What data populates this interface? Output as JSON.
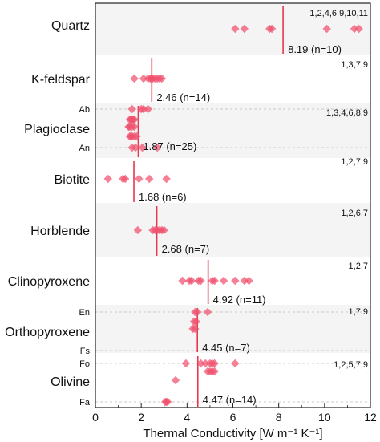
{
  "chart_data": {
    "type": "scatter",
    "title": "",
    "xlabel": "Thermal Conductivity [W m⁻¹ K⁻¹]",
    "ylabel": "",
    "xlim": [
      0,
      12
    ],
    "xticks": [
      0,
      2,
      4,
      6,
      8,
      10,
      12
    ],
    "grid": false,
    "legend": "none",
    "colors": {
      "marker": "#f0506e",
      "mean_line": "#e8364f",
      "band": "#f4f4f4",
      "divider": "#bbbbbb"
    },
    "minerals": [
      {
        "name": "Quartz",
        "refs": "1,2,4,6,9,10,11",
        "mean": 8.19,
        "mean_label": "8.19 (n=10)",
        "subgroups": [
          {
            "label": "",
            "values": [
              6.1,
              6.5,
              7.6,
              7.7,
              10.1,
              11.3,
              11.5
            ]
          }
        ]
      },
      {
        "name": "K-feldspar",
        "refs": "1,3,7,9",
        "mean": 2.46,
        "mean_label": "2.46 (n=14)",
        "subgroups": [
          {
            "label": "",
            "values": [
              1.7,
              2.1,
              2.3,
              2.4,
              2.45,
              2.5,
              2.6,
              2.7,
              2.8,
              2.9
            ]
          }
        ]
      },
      {
        "name": "Plagioclase",
        "refs": "1,3,4,6,8,9",
        "mean": 1.87,
        "mean_label": "1.87 (n=25)",
        "subgroups": [
          {
            "label": "Ab",
            "values": [
              1.6,
              2.0,
              2.1,
              2.3
            ]
          },
          {
            "label": "",
            "values": [
              1.5,
              1.55,
              1.6,
              1.65,
              1.7
            ]
          },
          {
            "label": "",
            "values": [
              1.45,
              1.5,
              1.6,
              1.7
            ]
          },
          {
            "label": "",
            "values": [
              1.5,
              1.55,
              1.6,
              1.7,
              1.8
            ]
          },
          {
            "label": "An",
            "values": [
              1.6,
              1.75,
              2.05,
              2.7
            ]
          }
        ]
      },
      {
        "name": "Biotite",
        "refs": "1,2,7,9",
        "mean": 1.68,
        "mean_label": "1.68 (n=6)",
        "subgroups": [
          {
            "label": "",
            "values": [
              0.55,
              1.2,
              1.3,
              1.9,
              2.35,
              3.1
            ]
          }
        ]
      },
      {
        "name": "Horblende",
        "refs": "1,2,6,7",
        "mean": 2.68,
        "mean_label": "2.68 (n=7)",
        "subgroups": [
          {
            "label": "",
            "values": [
              1.85,
              2.5,
              2.6,
              2.7,
              2.8,
              2.9,
              3.0
            ]
          }
        ]
      },
      {
        "name": "Clinopyroxene",
        "refs": "1,2,7",
        "mean": 4.92,
        "mean_label": "4.92 (n=11)",
        "subgroups": [
          {
            "label": "",
            "values": [
              3.8,
              4.1,
              4.2,
              4.5,
              4.6,
              5.1,
              5.2,
              5.6,
              6.1,
              6.5,
              6.7
            ]
          }
        ]
      },
      {
        "name": "Orthopyroxene",
        "refs": "1,7,9",
        "mean": 4.45,
        "mean_label": "4.45 (n=7)",
        "subgroups": [
          {
            "label": "En",
            "values": [
              4.35,
              4.45,
              4.9
            ]
          },
          {
            "label": "",
            "values": [
              4.3,
              4.4
            ]
          },
          {
            "label": "",
            "values": [
              4.25,
              4.35
            ]
          },
          {
            "label": "Fs",
            "values": []
          }
        ]
      },
      {
        "name": "Olivine",
        "refs": "1,2,5,7,9",
        "mean": 4.47,
        "mean_label": "4.47 (n=14)",
        "subgroups": [
          {
            "label": "Fo",
            "values": [
              3.95,
              4.6,
              4.8,
              5.0,
              5.1,
              5.2,
              6.1
            ]
          },
          {
            "label": "",
            "values": [
              4.9,
              5.0,
              5.1,
              5.2
            ]
          },
          {
            "label": "",
            "values": [
              3.5
            ]
          },
          {
            "label": "Fa",
            "values": [
              3.05,
              3.1,
              3.15
            ]
          }
        ]
      }
    ]
  }
}
